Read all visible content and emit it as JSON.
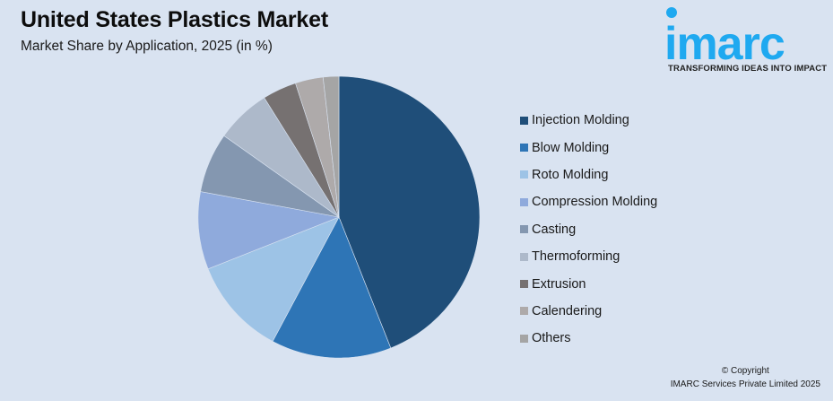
{
  "header": {
    "title": "United States Plastics Market",
    "subtitle": "Market Share by Application, 2025 (in %)"
  },
  "logo": {
    "text": "imarc",
    "tagline": "TRANSFORMING IDEAS INTO IMPACT",
    "color": "#1fa9f0"
  },
  "footer": {
    "copyright_line1": "© Copyright",
    "copyright_line2": "IMARC Services Private Limited 2025"
  },
  "chart_data": {
    "type": "pie",
    "title": "United States Plastics Market",
    "subtitle": "Market Share by Application, 2025 (in %)",
    "legend_position": "right",
    "start_angle_deg": 0,
    "direction": "clockwise",
    "categories": [
      "Injection Molding",
      "Blow Molding",
      "Roto Molding",
      "Compression Molding",
      "Casting",
      "Thermoforming",
      "Extrusion",
      "Calendering",
      "Others"
    ],
    "values": [
      44.0,
      13.8,
      11.2,
      8.9,
      6.9,
      6.3,
      3.9,
      3.2,
      1.8
    ],
    "colors": [
      "#1f4e79",
      "#2e75b6",
      "#9dc3e6",
      "#8faadc",
      "#8497b0",
      "#adb9ca",
      "#767171",
      "#aeaaaa",
      "#a5a5a5"
    ],
    "data_labels_shown": false
  }
}
